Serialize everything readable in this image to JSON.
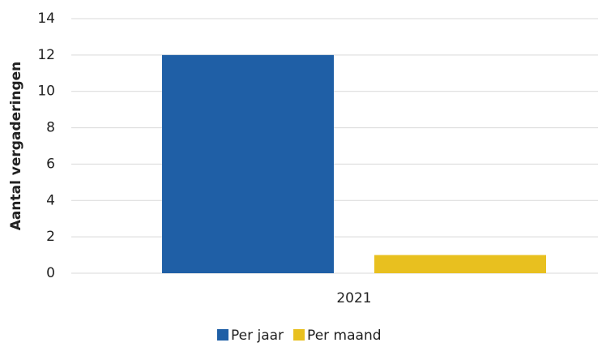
{
  "chart_data": {
    "type": "bar",
    "y_label": "Aantal vergaderingen",
    "categories": [
      "2021"
    ],
    "series": [
      {
        "name": "Per jaar",
        "color": "#1f5fa6",
        "values": [
          12
        ]
      },
      {
        "name": "Per maand",
        "color": "#e8c01f",
        "values": [
          1
        ]
      }
    ],
    "ylim": [
      0,
      14
    ],
    "yticks": [
      0,
      2,
      4,
      6,
      8,
      10,
      12,
      14
    ],
    "grid": true,
    "legend": "bottom"
  }
}
